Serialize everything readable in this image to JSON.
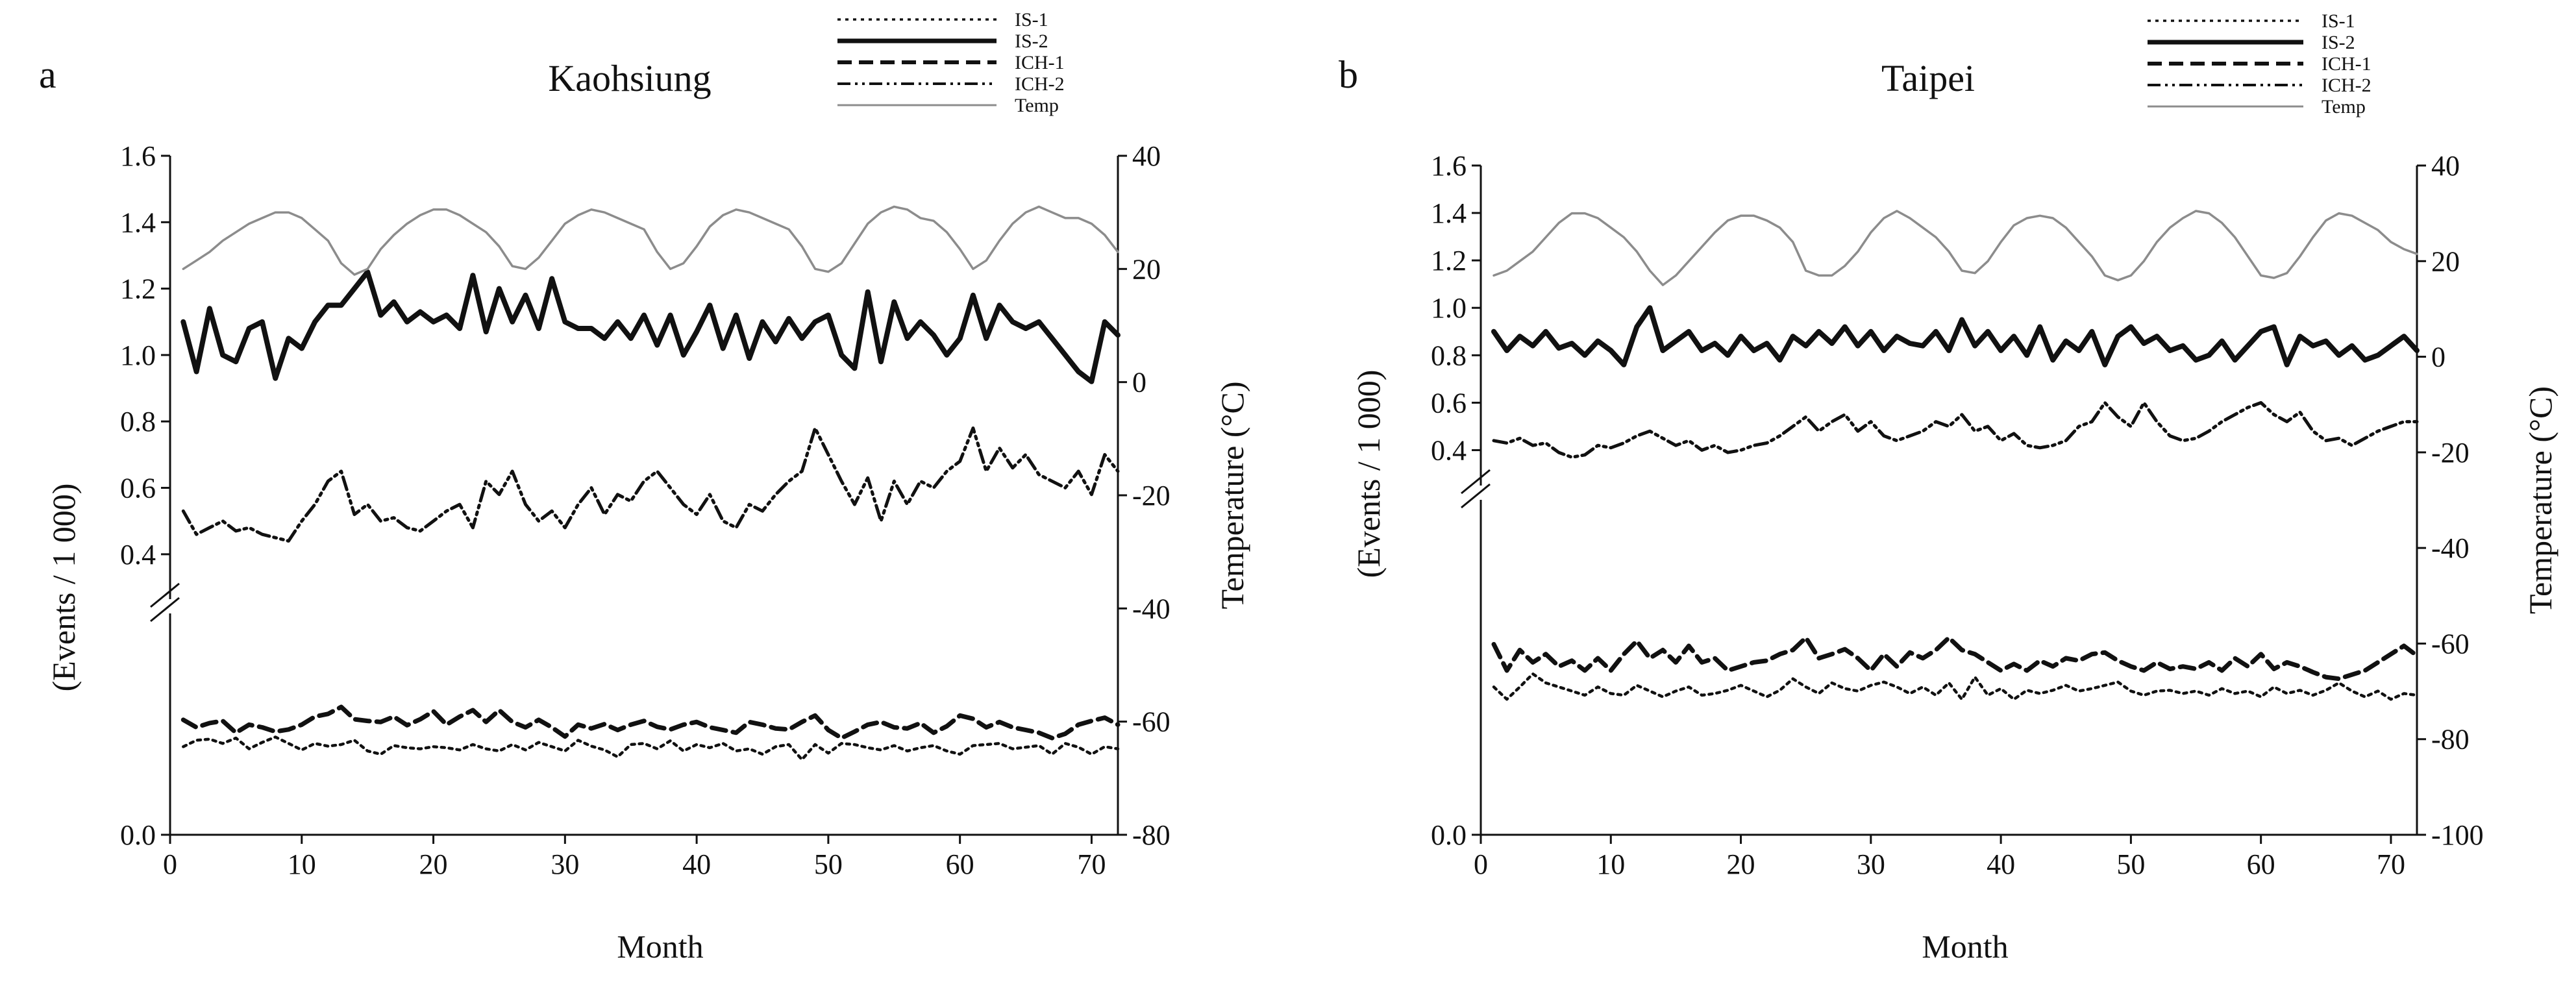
{
  "chart_data": [
    {
      "type": "line",
      "panel_label": "a",
      "title": "Kaohsiung",
      "xlabel": "Month",
      "ylabel": "(Events / 1 000)",
      "y2label": "Temperature",
      "y2label_unit": "(°C)",
      "xlim": [
        0,
        72
      ],
      "ylim_upper": [
        0.3,
        1.6
      ],
      "ylim_lower": [
        0.0,
        0.4
      ],
      "y2lim": [
        -80,
        40
      ],
      "xticks": [
        0,
        10,
        20,
        30,
        40,
        50,
        60,
        70
      ],
      "yticks": [
        "0.0",
        "0.4",
        "0.6",
        "0.8",
        "1.0",
        "1.2",
        "1.4",
        "1.6"
      ],
      "y2ticks": [
        40,
        20,
        0,
        -20,
        -40,
        -60,
        -80
      ],
      "legend": [
        "IS-1",
        "IS-2",
        "ICH-1",
        "ICH-2",
        "Temp"
      ],
      "series": [
        {
          "name": "IS-2",
          "axis": "left",
          "values": [
            1.1,
            0.95,
            1.14,
            1.0,
            0.98,
            1.08,
            1.1,
            0.93,
            1.05,
            1.02,
            1.1,
            1.15,
            1.15,
            1.2,
            1.25,
            1.12,
            1.16,
            1.1,
            1.13,
            1.1,
            1.12,
            1.08,
            1.24,
            1.07,
            1.2,
            1.1,
            1.18,
            1.08,
            1.23,
            1.1,
            1.08,
            1.08,
            1.05,
            1.1,
            1.05,
            1.12,
            1.03,
            1.12,
            1.0,
            1.07,
            1.15,
            1.02,
            1.12,
            0.99,
            1.1,
            1.04,
            1.11,
            1.05,
            1.1,
            1.12,
            1.0,
            0.96,
            1.19,
            0.98,
            1.16,
            1.05,
            1.1,
            1.06,
            1.0,
            1.05,
            1.18,
            1.05,
            1.15,
            1.1,
            1.08,
            1.1,
            1.05,
            1.0,
            0.95,
            0.92,
            1.1,
            1.06
          ]
        },
        {
          "name": "ICH-2",
          "axis": "left",
          "values": [
            0.53,
            0.46,
            0.48,
            0.5,
            0.47,
            0.48,
            0.46,
            0.45,
            0.44,
            0.5,
            0.55,
            0.62,
            0.65,
            0.52,
            0.55,
            0.5,
            0.51,
            0.48,
            0.47,
            0.5,
            0.53,
            0.55,
            0.48,
            0.62,
            0.58,
            0.65,
            0.55,
            0.5,
            0.53,
            0.48,
            0.55,
            0.6,
            0.52,
            0.58,
            0.56,
            0.62,
            0.65,
            0.6,
            0.55,
            0.52,
            0.58,
            0.5,
            0.48,
            0.55,
            0.53,
            0.58,
            0.62,
            0.65,
            0.78,
            0.7,
            0.62,
            0.55,
            0.63,
            0.5,
            0.62,
            0.55,
            0.62,
            0.6,
            0.65,
            0.68,
            0.78,
            0.65,
            0.72,
            0.66,
            0.7,
            0.64,
            0.62,
            0.6,
            0.65,
            0.58,
            0.7,
            0.65
          ]
        },
        {
          "name": "ICH-1",
          "axis": "left",
          "values": [
            0.214,
            0.2,
            0.208,
            0.212,
            0.19,
            0.205,
            0.2,
            0.192,
            0.196,
            0.205,
            0.22,
            0.225,
            0.238,
            0.215,
            0.212,
            0.21,
            0.22,
            0.204,
            0.215,
            0.23,
            0.205,
            0.22,
            0.232,
            0.21,
            0.232,
            0.21,
            0.2,
            0.214,
            0.2,
            0.183,
            0.205,
            0.198,
            0.206,
            0.195,
            0.205,
            0.212,
            0.201,
            0.196,
            0.205,
            0.21,
            0.2,
            0.195,
            0.19,
            0.21,
            0.205,
            0.198,
            0.196,
            0.21,
            0.222,
            0.195,
            0.18,
            0.192,
            0.205,
            0.21,
            0.2,
            0.198,
            0.208,
            0.19,
            0.202,
            0.222,
            0.216,
            0.2,
            0.21,
            0.2,
            0.195,
            0.19,
            0.18,
            0.188,
            0.205,
            0.212,
            0.218,
            0.205
          ]
        },
        {
          "name": "IS-1",
          "axis": "left",
          "values": [
            0.164,
            0.176,
            0.178,
            0.17,
            0.18,
            0.16,
            0.172,
            0.182,
            0.17,
            0.158,
            0.17,
            0.165,
            0.168,
            0.176,
            0.156,
            0.15,
            0.166,
            0.162,
            0.16,
            0.164,
            0.162,
            0.158,
            0.168,
            0.16,
            0.156,
            0.168,
            0.158,
            0.172,
            0.164,
            0.156,
            0.176,
            0.165,
            0.158,
            0.145,
            0.168,
            0.17,
            0.16,
            0.175,
            0.156,
            0.168,
            0.162,
            0.17,
            0.156,
            0.16,
            0.15,
            0.164,
            0.168,
            0.14,
            0.168,
            0.152,
            0.17,
            0.168,
            0.162,
            0.158,
            0.166,
            0.156,
            0.162,
            0.166,
            0.156,
            0.15,
            0.166,
            0.168,
            0.17,
            0.16,
            0.163,
            0.166,
            0.15,
            0.17,
            0.163,
            0.15,
            0.164,
            0.16
          ]
        },
        {
          "name": "Temp",
          "axis": "right",
          "values": [
            20.0,
            21.5,
            23.0,
            25.0,
            26.5,
            28.0,
            29.0,
            30.0,
            30.0,
            29.0,
            27.0,
            25.0,
            21.0,
            19.0,
            20.0,
            23.5,
            26.0,
            28.0,
            29.5,
            30.5,
            30.5,
            29.5,
            28.0,
            26.5,
            24.0,
            20.5,
            20.0,
            22.0,
            25.0,
            28.0,
            29.5,
            30.5,
            30.0,
            29.0,
            28.0,
            27.0,
            23.0,
            20.0,
            21.0,
            24.0,
            27.5,
            29.5,
            30.5,
            30.0,
            29.0,
            28.0,
            27.0,
            24.0,
            20.0,
            19.5,
            21.0,
            24.5,
            28.0,
            30.0,
            31.0,
            30.5,
            29.0,
            28.5,
            26.5,
            23.5,
            20.0,
            21.5,
            25.0,
            28.0,
            30.0,
            31.0,
            30.0,
            29.0,
            29.0,
            28.0,
            26.0,
            23.0
          ]
        }
      ]
    },
    {
      "type": "line",
      "panel_label": "b",
      "title": "Taipei",
      "xlabel": "Month",
      "ylabel": "(Events / 1 000)",
      "y2label": "Temperature",
      "y2label_unit": "(°C)",
      "xlim": [
        0,
        72
      ],
      "ylim_upper": [
        0.3,
        1.6
      ],
      "ylim_lower": [
        0.0,
        0.4
      ],
      "y2lim": [
        -100,
        40
      ],
      "xticks": [
        0,
        10,
        20,
        30,
        40,
        50,
        60,
        70
      ],
      "yticks": [
        "0.0",
        "0.4",
        "0.6",
        "0.8",
        "1.0",
        "1.2",
        "1.4",
        "1.6"
      ],
      "y2ticks": [
        40,
        20,
        0,
        -20,
        -40,
        -60,
        -80,
        -100
      ],
      "legend": [
        "IS-1",
        "IS-2",
        "ICH-1",
        "ICH-2",
        "Temp"
      ],
      "series": [
        {
          "name": "IS-2",
          "axis": "left",
          "values": [
            0.9,
            0.82,
            0.88,
            0.84,
            0.9,
            0.83,
            0.85,
            0.8,
            0.86,
            0.82,
            0.76,
            0.92,
            1.0,
            0.82,
            0.86,
            0.9,
            0.82,
            0.85,
            0.8,
            0.88,
            0.82,
            0.85,
            0.78,
            0.88,
            0.84,
            0.9,
            0.85,
            0.92,
            0.84,
            0.9,
            0.82,
            0.88,
            0.85,
            0.84,
            0.9,
            0.82,
            0.95,
            0.84,
            0.9,
            0.82,
            0.88,
            0.8,
            0.92,
            0.78,
            0.86,
            0.82,
            0.9,
            0.76,
            0.88,
            0.92,
            0.85,
            0.88,
            0.82,
            0.84,
            0.78,
            0.8,
            0.86,
            0.78,
            0.84,
            0.9,
            0.92,
            0.76,
            0.88,
            0.84,
            0.86,
            0.8,
            0.84,
            0.78,
            0.8,
            0.84,
            0.88,
            0.82
          ]
        },
        {
          "name": "ICH-2",
          "axis": "left",
          "values": [
            0.44,
            0.43,
            0.45,
            0.42,
            0.43,
            0.39,
            0.37,
            0.38,
            0.42,
            0.41,
            0.43,
            0.46,
            0.48,
            0.45,
            0.42,
            0.44,
            0.4,
            0.42,
            0.39,
            0.4,
            0.42,
            0.43,
            0.46,
            0.5,
            0.54,
            0.48,
            0.52,
            0.55,
            0.48,
            0.52,
            0.46,
            0.44,
            0.46,
            0.48,
            0.52,
            0.5,
            0.55,
            0.48,
            0.5,
            0.44,
            0.47,
            0.42,
            0.41,
            0.42,
            0.44,
            0.5,
            0.52,
            0.6,
            0.54,
            0.5,
            0.6,
            0.52,
            0.46,
            0.44,
            0.45,
            0.48,
            0.52,
            0.55,
            0.58,
            0.6,
            0.55,
            0.52,
            0.56,
            0.48,
            0.44,
            0.45,
            0.42,
            0.45,
            0.48,
            0.5,
            0.52,
            0.52
          ]
        },
        {
          "name": "ICH-1",
          "axis": "left",
          "values": [
            0.232,
            0.2,
            0.225,
            0.21,
            0.22,
            0.205,
            0.212,
            0.2,
            0.215,
            0.2,
            0.22,
            0.236,
            0.215,
            0.225,
            0.21,
            0.23,
            0.21,
            0.215,
            0.2,
            0.205,
            0.21,
            0.212,
            0.22,
            0.225,
            0.24,
            0.215,
            0.22,
            0.226,
            0.215,
            0.2,
            0.22,
            0.205,
            0.222,
            0.215,
            0.225,
            0.24,
            0.225,
            0.22,
            0.21,
            0.2,
            0.208,
            0.2,
            0.212,
            0.205,
            0.215,
            0.212,
            0.22,
            0.222,
            0.212,
            0.205,
            0.2,
            0.21,
            0.202,
            0.205,
            0.202,
            0.21,
            0.2,
            0.215,
            0.205,
            0.22,
            0.202,
            0.21,
            0.205,
            0.198,
            0.192,
            0.19,
            0.195,
            0.2,
            0.21,
            0.22,
            0.23,
            0.218
          ]
        },
        {
          "name": "IS-1",
          "axis": "left",
          "values": [
            0.18,
            0.165,
            0.18,
            0.196,
            0.185,
            0.18,
            0.175,
            0.17,
            0.18,
            0.172,
            0.17,
            0.182,
            0.175,
            0.168,
            0.175,
            0.18,
            0.17,
            0.172,
            0.176,
            0.182,
            0.175,
            0.168,
            0.176,
            0.19,
            0.18,
            0.172,
            0.185,
            0.178,
            0.175,
            0.182,
            0.186,
            0.18,
            0.172,
            0.18,
            0.17,
            0.185,
            0.165,
            0.192,
            0.17,
            0.178,
            0.165,
            0.176,
            0.172,
            0.176,
            0.182,
            0.175,
            0.178,
            0.182,
            0.186,
            0.175,
            0.17,
            0.175,
            0.176,
            0.172,
            0.175,
            0.17,
            0.178,
            0.172,
            0.175,
            0.168,
            0.18,
            0.172,
            0.176,
            0.17,
            0.176,
            0.185,
            0.175,
            0.168,
            0.175,
            0.165,
            0.172,
            0.17
          ]
        },
        {
          "name": "Temp",
          "axis": "right",
          "values": [
            17.0,
            18.0,
            20.0,
            22.0,
            25.0,
            28.0,
            30.0,
            30.0,
            29.0,
            27.0,
            25.0,
            22.0,
            18.0,
            15.0,
            17.0,
            20.0,
            23.0,
            26.0,
            28.5,
            29.5,
            29.5,
            28.5,
            27.0,
            24.0,
            18.0,
            17.0,
            17.0,
            19.0,
            22.0,
            26.0,
            29.0,
            30.5,
            29.0,
            27.0,
            25.0,
            22.0,
            18.0,
            17.5,
            20.0,
            24.0,
            27.5,
            29.0,
            29.5,
            29.0,
            27.0,
            24.0,
            21.0,
            17.0,
            16.0,
            17.0,
            20.0,
            24.0,
            27.0,
            29.0,
            30.5,
            30.0,
            28.0,
            25.0,
            21.0,
            17.0,
            16.5,
            17.5,
            21.0,
            25.0,
            28.5,
            30.0,
            29.5,
            28.0,
            26.5,
            24.0,
            22.5,
            21.5
          ]
        }
      ]
    }
  ]
}
